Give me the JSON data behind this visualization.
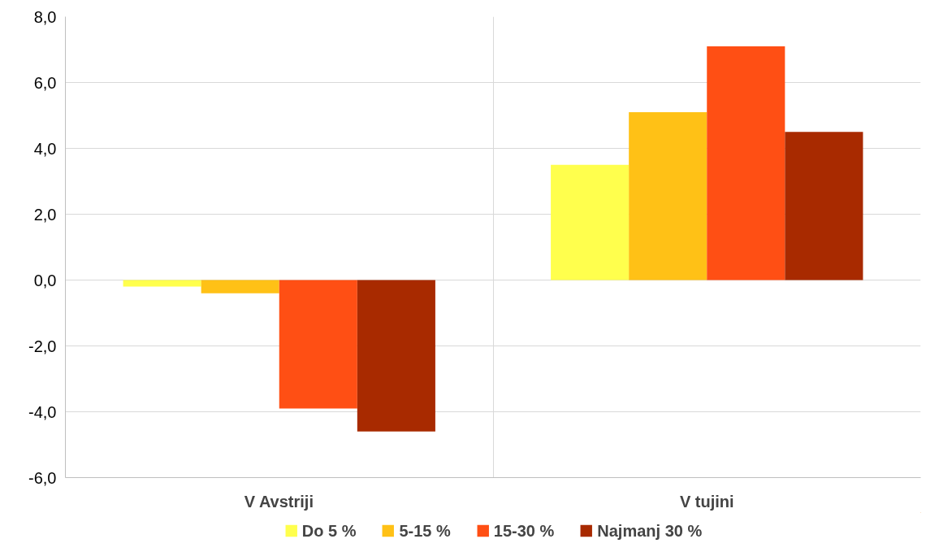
{
  "chart_data": {
    "type": "bar",
    "categories": [
      "V Avstriji",
      "V tujini"
    ],
    "series": [
      {
        "name": "Do 5 %",
        "color": "#ffff4d",
        "values": [
          -0.2,
          3.5
        ]
      },
      {
        "name": "5-15 %",
        "color": "#ffc116",
        "values": [
          -0.4,
          5.1
        ]
      },
      {
        "name": "15-30 %",
        "color": "#ff4f14",
        "values": [
          -3.9,
          7.1
        ]
      },
      {
        "name": "Najmanj 30 %",
        "color": "#a82a00",
        "values": [
          -4.6,
          4.5
        ]
      }
    ],
    "ylim": [
      -6,
      8
    ],
    "yticks": [
      {
        "value": -6,
        "label": "-6,0"
      },
      {
        "value": -4,
        "label": "-4,0"
      },
      {
        "value": -2,
        "label": "-2,0"
      },
      {
        "value": 0,
        "label": "0,0"
      },
      {
        "value": 2,
        "label": "2,0"
      },
      {
        "value": 4,
        "label": "4,0"
      },
      {
        "value": 6,
        "label": "6,0"
      },
      {
        "value": 8,
        "label": "8,0"
      }
    ],
    "grid": true,
    "legend": "bottom"
  }
}
